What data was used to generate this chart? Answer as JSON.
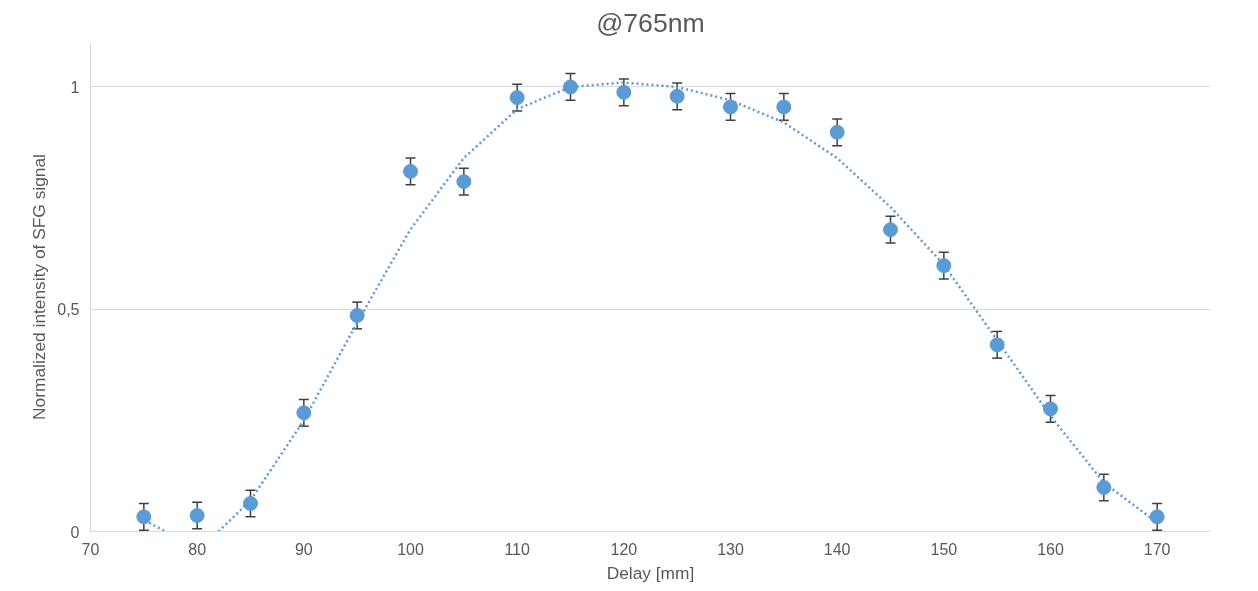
{
  "chart_data": {
    "type": "scatter",
    "title": "@765nm",
    "xlabel": "Delay [mm]",
    "ylabel": "Normalized intensity of SFG signal",
    "x": [
      75,
      80,
      85,
      90,
      95,
      100,
      105,
      110,
      115,
      120,
      125,
      130,
      135,
      140,
      145,
      150,
      155,
      160,
      165,
      170
    ],
    "series": [
      {
        "color": "#5b9bd5",
        "marker": "circle",
        "values": [
          0.033,
          0.036,
          0.063,
          0.267,
          0.486,
          0.81,
          0.787,
          0.976,
          1.0,
          0.988,
          0.979,
          0.955,
          0.955,
          0.898,
          0.679,
          0.598,
          0.42,
          0.276,
          0.099,
          0.033
        ],
        "errors": [
          0.03,
          0.03,
          0.03,
          0.03,
          0.03,
          0.03,
          0.03,
          0.03,
          0.03,
          0.03,
          0.03,
          0.03,
          0.03,
          0.03,
          0.03,
          0.03,
          0.03,
          0.03,
          0.03,
          0.03
        ]
      },
      {
        "type": "line",
        "color": "#5b9bd5",
        "line_style": "dotted",
        "x": [
          75.5,
          77,
          79.5,
          82,
          85,
          90,
          95,
          100,
          105,
          110,
          115,
          120,
          125,
          130,
          135,
          140,
          145,
          150,
          155,
          160,
          165,
          170
        ],
        "values": [
          0.02,
          0,
          null,
          0,
          0.07,
          0.25,
          0.47,
          0.68,
          0.84,
          0.95,
          1.0,
          1.01,
          1.0,
          0.97,
          0.92,
          0.84,
          0.73,
          0.6,
          0.43,
          0.26,
          0.11,
          0.02
        ]
      }
    ],
    "xlim": [
      70,
      175
    ],
    "xticks": [
      70,
      80,
      90,
      100,
      110,
      120,
      130,
      140,
      150,
      160,
      170
    ],
    "ylim": [
      0,
      1.1
    ],
    "yticks": [
      0,
      {
        "value": 0.5,
        "label": "0,5"
      },
      1
    ],
    "grid": "y"
  }
}
